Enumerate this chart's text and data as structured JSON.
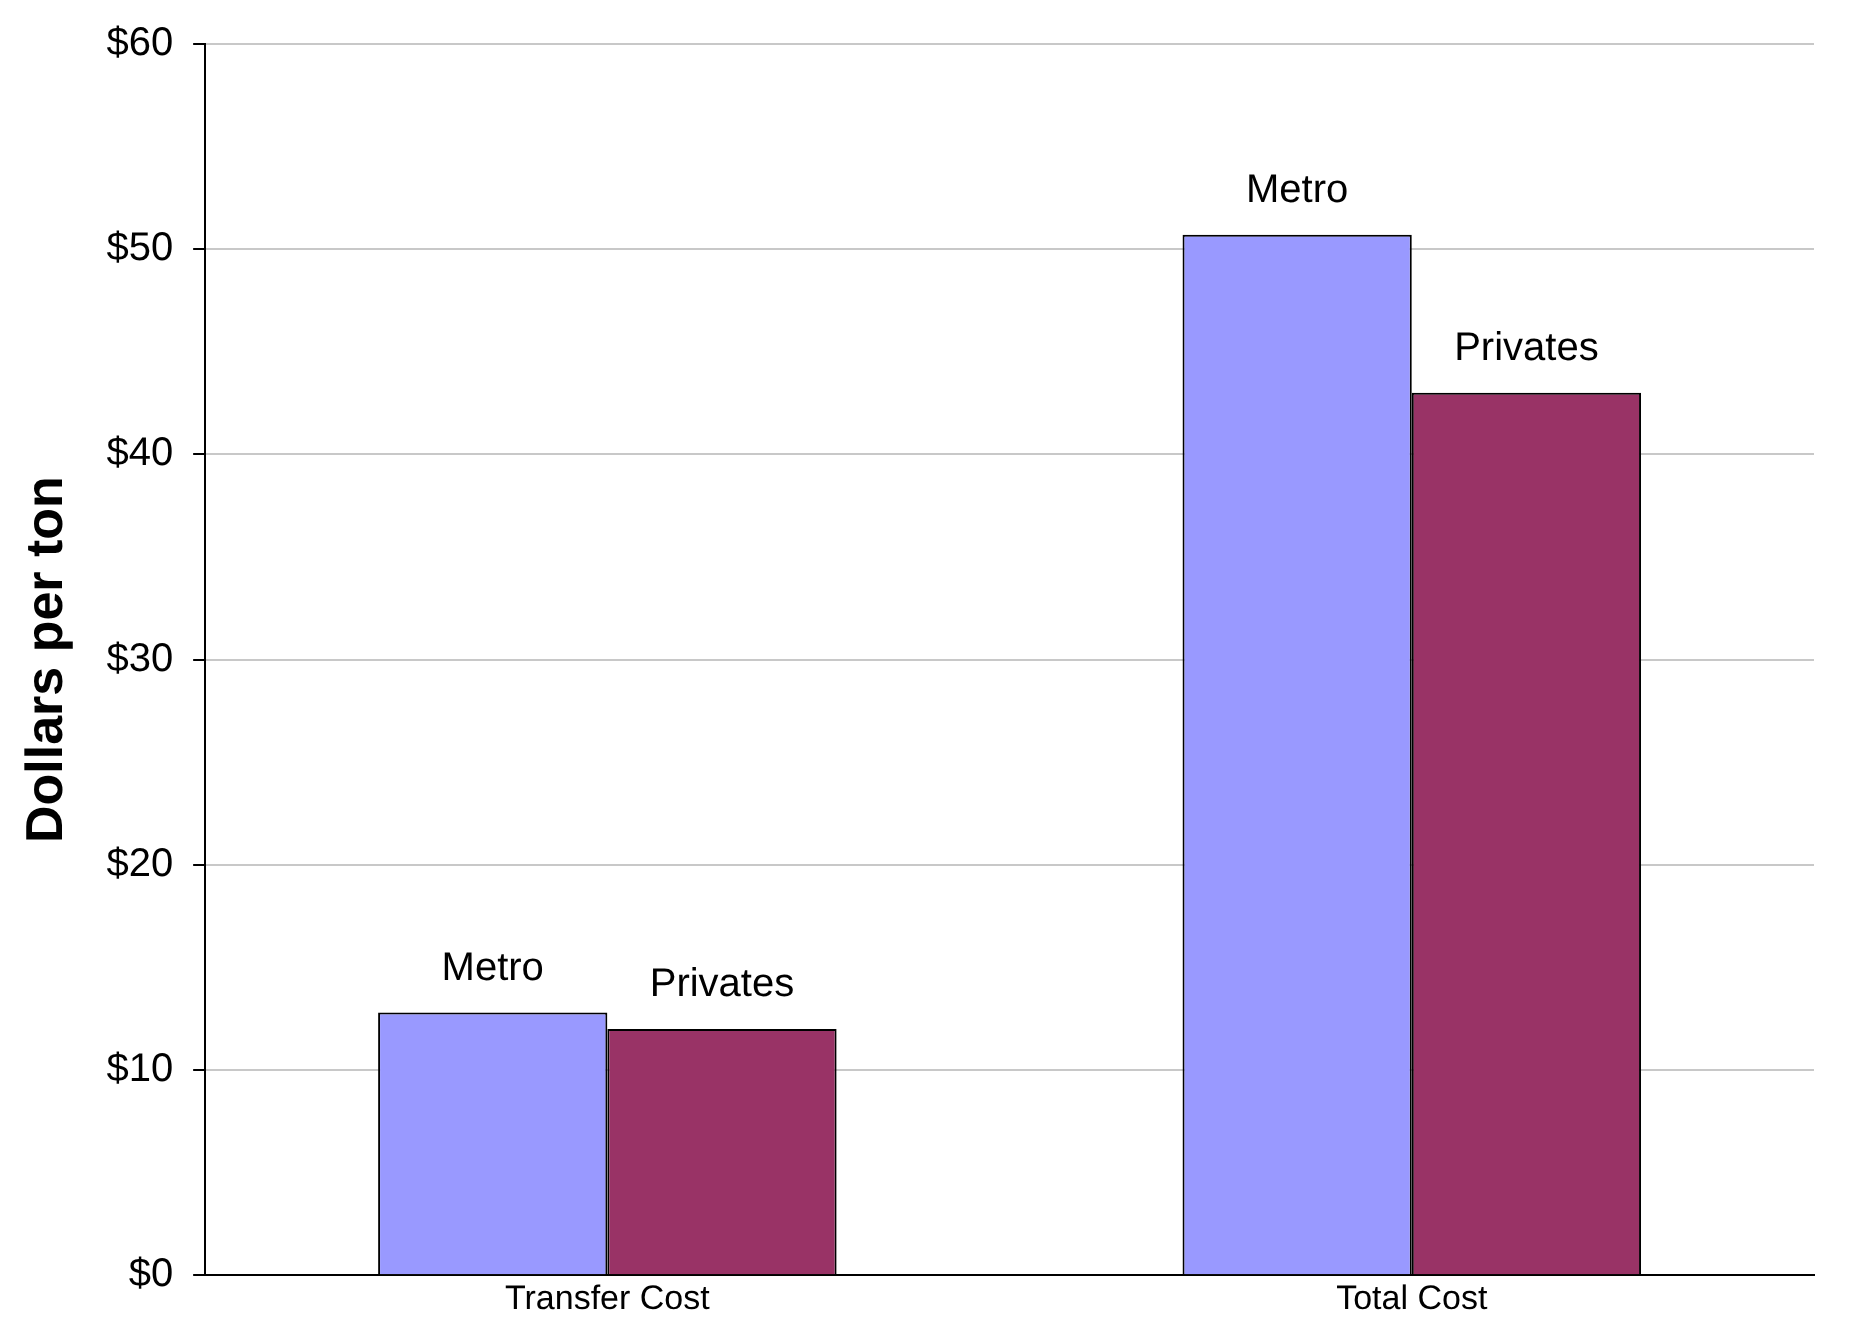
{
  "chart_data": {
    "type": "bar",
    "ylabel": "Dollars per ton",
    "categories": [
      "Transfer Cost",
      "Total Cost"
    ],
    "series": [
      {
        "name": "Metro",
        "color": "#9999ff",
        "values": [
          12.8,
          50.7
        ]
      },
      {
        "name": "Privates",
        "color": "#993366",
        "values": [
          12.0,
          43.0
        ]
      }
    ],
    "ylim": [
      0,
      60
    ],
    "yticks": [
      {
        "value": 0,
        "label": "$0"
      },
      {
        "value": 10,
        "label": "$10"
      },
      {
        "value": 20,
        "label": "$20"
      },
      {
        "value": 30,
        "label": "$30"
      },
      {
        "value": 40,
        "label": "$40"
      },
      {
        "value": 50,
        "label": "$50"
      },
      {
        "value": 60,
        "label": "$60"
      }
    ],
    "grid": "y",
    "legend": false
  }
}
